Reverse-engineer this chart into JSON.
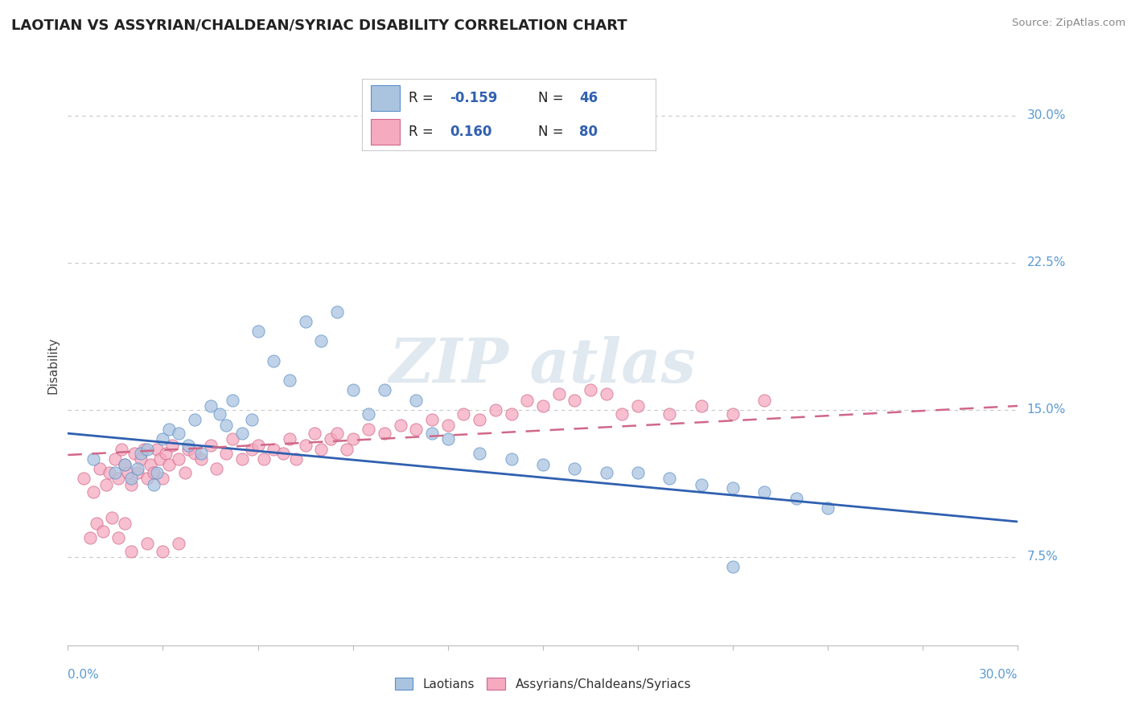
{
  "title": "LAOTIAN VS ASSYRIAN/CHALDEAN/SYRIAC DISABILITY CORRELATION CHART",
  "source": "Source: ZipAtlas.com",
  "ylabel": "Disability",
  "right_ytick_labels": [
    "7.5%",
    "15.0%",
    "22.5%",
    "30.0%"
  ],
  "right_ytick_vals": [
    0.075,
    0.15,
    0.225,
    0.3
  ],
  "xmin": 0.0,
  "xmax": 0.3,
  "ymin": 0.03,
  "ymax": 0.315,
  "laotian_color": "#aac4e0",
  "laotian_edge_color": "#5b8fc8",
  "assyrian_color": "#f5aac0",
  "assyrian_edge_color": "#d06888",
  "laotian_line_color": "#3060b0",
  "assyrian_line_color": "#d06888",
  "background_color": "#ffffff",
  "grid_color": "#c8c8c8",
  "legend_text_color": "#3060b0",
  "legend_box_color": "#dddddd",
  "source_color": "#888888",
  "title_color": "#222222",
  "axis_label_color": "#5b9bd5",
  "ylabel_color": "#444444",
  "laotian_R_label": "-0.159",
  "laotian_N_label": "46",
  "assyrian_R_label": "0.160",
  "assyrian_N_label": "80",
  "lao_trend_x0": 0.0,
  "lao_trend_y0": 0.138,
  "lao_trend_x1": 0.3,
  "lao_trend_y1": 0.093,
  "ass_trend_x0": 0.0,
  "ass_trend_y0": 0.127,
  "ass_trend_x1": 0.3,
  "ass_trend_y1": 0.152,
  "laotian_x": [
    0.008,
    0.015,
    0.018,
    0.02,
    0.022,
    0.023,
    0.025,
    0.027,
    0.028,
    0.03,
    0.032,
    0.035,
    0.038,
    0.04,
    0.042,
    0.045,
    0.048,
    0.05,
    0.052,
    0.055,
    0.058,
    0.06,
    0.065,
    0.07,
    0.075,
    0.08,
    0.085,
    0.09,
    0.095,
    0.1,
    0.11,
    0.115,
    0.12,
    0.13,
    0.14,
    0.15,
    0.16,
    0.17,
    0.18,
    0.19,
    0.2,
    0.21,
    0.22,
    0.23,
    0.24,
    0.21
  ],
  "laotian_y": [
    0.125,
    0.118,
    0.122,
    0.115,
    0.12,
    0.128,
    0.13,
    0.112,
    0.118,
    0.135,
    0.14,
    0.138,
    0.132,
    0.145,
    0.128,
    0.152,
    0.148,
    0.142,
    0.155,
    0.138,
    0.145,
    0.19,
    0.175,
    0.165,
    0.195,
    0.185,
    0.2,
    0.16,
    0.148,
    0.16,
    0.155,
    0.138,
    0.135,
    0.128,
    0.125,
    0.122,
    0.12,
    0.118,
    0.118,
    0.115,
    0.112,
    0.11,
    0.108,
    0.105,
    0.1,
    0.07
  ],
  "assyrian_x": [
    0.005,
    0.008,
    0.01,
    0.012,
    0.013,
    0.015,
    0.016,
    0.017,
    0.018,
    0.019,
    0.02,
    0.021,
    0.022,
    0.023,
    0.024,
    0.025,
    0.026,
    0.027,
    0.028,
    0.029,
    0.03,
    0.031,
    0.032,
    0.033,
    0.035,
    0.037,
    0.038,
    0.04,
    0.042,
    0.045,
    0.047,
    0.05,
    0.052,
    0.055,
    0.058,
    0.06,
    0.062,
    0.065,
    0.068,
    0.07,
    0.072,
    0.075,
    0.078,
    0.08,
    0.083,
    0.085,
    0.088,
    0.09,
    0.095,
    0.1,
    0.105,
    0.11,
    0.115,
    0.12,
    0.125,
    0.13,
    0.135,
    0.14,
    0.145,
    0.15,
    0.155,
    0.16,
    0.165,
    0.17,
    0.175,
    0.18,
    0.19,
    0.2,
    0.21,
    0.22,
    0.007,
    0.009,
    0.011,
    0.014,
    0.016,
    0.018,
    0.02,
    0.025,
    0.03,
    0.035
  ],
  "assyrian_y": [
    0.115,
    0.108,
    0.12,
    0.112,
    0.118,
    0.125,
    0.115,
    0.13,
    0.122,
    0.118,
    0.112,
    0.128,
    0.118,
    0.125,
    0.13,
    0.115,
    0.122,
    0.118,
    0.13,
    0.125,
    0.115,
    0.128,
    0.122,
    0.132,
    0.125,
    0.118,
    0.13,
    0.128,
    0.125,
    0.132,
    0.12,
    0.128,
    0.135,
    0.125,
    0.13,
    0.132,
    0.125,
    0.13,
    0.128,
    0.135,
    0.125,
    0.132,
    0.138,
    0.13,
    0.135,
    0.138,
    0.13,
    0.135,
    0.14,
    0.138,
    0.142,
    0.14,
    0.145,
    0.142,
    0.148,
    0.145,
    0.15,
    0.148,
    0.155,
    0.152,
    0.158,
    0.155,
    0.16,
    0.158,
    0.148,
    0.152,
    0.148,
    0.152,
    0.148,
    0.155,
    0.085,
    0.092,
    0.088,
    0.095,
    0.085,
    0.092,
    0.078,
    0.082,
    0.078,
    0.082
  ]
}
